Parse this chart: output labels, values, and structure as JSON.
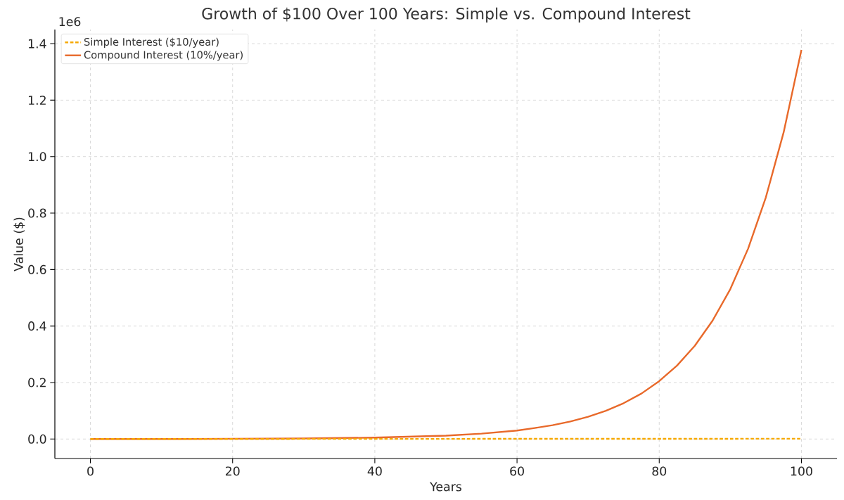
{
  "chart_data": {
    "type": "line",
    "title": "Growth of $100 Over 100 Years: Simple vs. Compound Interest",
    "xlabel": "Years",
    "ylabel": "Value ($)",
    "series": [
      {
        "name": "Simple Interest ($10/year)",
        "color": "#f5a800",
        "line_style": "dashed",
        "x": [
          0,
          100
        ],
        "values": [
          0,
          0.001
        ]
      },
      {
        "name": "Compound Interest (10%/year)",
        "color": "#e8692a",
        "line_style": "solid",
        "x": [
          0,
          10,
          20,
          30,
          40,
          50,
          55,
          60,
          62.5,
          65,
          67.5,
          70,
          72.5,
          75,
          77.5,
          80,
          82.5,
          85,
          87.5,
          90,
          92.5,
          95,
          97.5,
          100
        ],
        "values": [
          0,
          0,
          0.001,
          0.002,
          0.005,
          0.012,
          0.019,
          0.03,
          0.039,
          0.049,
          0.062,
          0.079,
          0.1,
          0.127,
          0.161,
          0.205,
          0.26,
          0.33,
          0.419,
          0.531,
          0.674,
          0.856,
          1.086,
          1.378
        ]
      }
    ],
    "xlim": [
      -5,
      105
    ],
    "ylim": [
      -0.069,
      1.45
    ],
    "xticks": [
      0,
      20,
      40,
      60,
      80,
      100
    ],
    "yticks": [
      {
        "value": 0,
        "label": "0.0"
      },
      0.2,
      0.4,
      0.6,
      0.8,
      {
        "value": 1,
        "label": "1.0"
      },
      1.2,
      1.4
    ],
    "annotations": [
      "1e6"
    ],
    "grid": true,
    "legend": "top left"
  }
}
